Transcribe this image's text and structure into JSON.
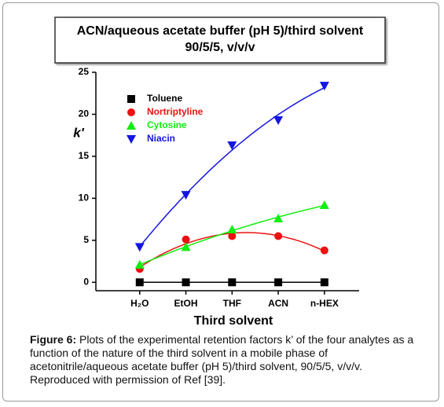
{
  "chart_data": {
    "type": "line",
    "title": [
      "ACN/aqueous acetate buffer (pH 5)/third solvent",
      "90/5/5, v/v/v"
    ],
    "x_label": "Third solvent",
    "y_label": "k'",
    "categories": [
      "H₂O",
      "EtOH",
      "THF",
      "ACN",
      "n-HEX"
    ],
    "ylim": [
      -1,
      25
    ],
    "yticks": [
      0,
      5,
      10,
      15,
      20,
      25
    ],
    "series": [
      {
        "name": "Toluene",
        "color": "#000000",
        "marker": "square",
        "values": [
          0,
          0,
          0,
          0,
          0
        ]
      },
      {
        "name": "Nortriptyline",
        "color": "#ee1111",
        "marker": "circle",
        "values": [
          1.6,
          5.1,
          5.5,
          5.5,
          3.8
        ]
      },
      {
        "name": "Cytosine",
        "color": "#11ee11",
        "marker": "triangle-up",
        "values": [
          2.1,
          4.2,
          6.3,
          7.6,
          9.2
        ]
      },
      {
        "name": "Niacin",
        "color": "#1515e0",
        "marker": "triangle-down",
        "values": [
          4.2,
          10.4,
          16.3,
          19.3,
          23.4
        ]
      }
    ]
  },
  "caption": {
    "label": "Figure 6:",
    "text": " Plots of the experimental retention factors k’ of the four analytes as a function of the nature of the third solvent in a mobile phase of acetonitrile/aqueous acetate buffer (pH 5)/third solvent, 90/5/5, v/v/v. Reproduced with permission of Ref [39]."
  }
}
